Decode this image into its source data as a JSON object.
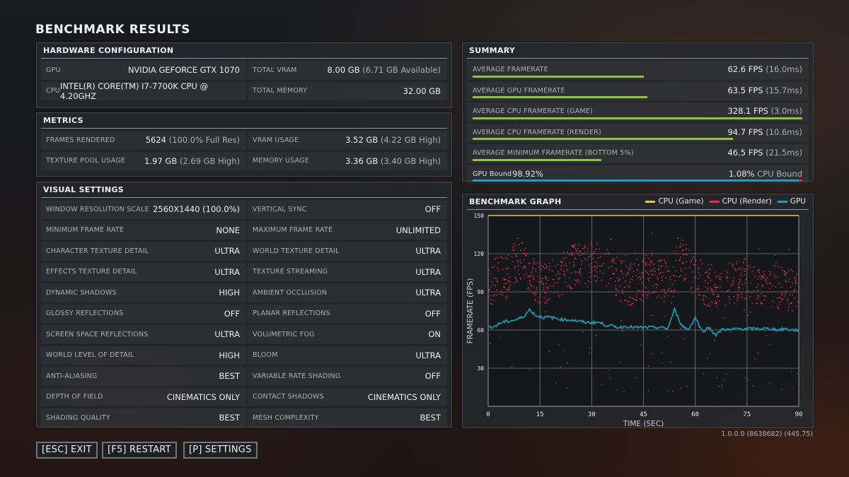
{
  "title": "BENCHMARK RESULTS",
  "hardware": {
    "header": "HARDWARE CONFIGURATION",
    "rows": [
      {
        "l_label": "GPU",
        "l_value": "NVIDIA GEFORCE GTX 1070",
        "r_label": "TOTAL VRAM",
        "r_value": "8.00 GB",
        "r_extra": "(6.71 GB Available)"
      },
      {
        "l_label": "CPU",
        "l_value": "INTEL(R) CORE(TM) I7-7700K CPU @ 4.20GHZ",
        "r_label": "TOTAL MEMORY",
        "r_value": "32.00 GB",
        "r_extra": ""
      }
    ]
  },
  "metrics": {
    "header": "METRICS",
    "rows": [
      {
        "l_label": "FRAMES RENDERED",
        "l_value": "5624",
        "l_extra": "(100.0% Full Res)",
        "r_label": "VRAM USAGE",
        "r_value": "3.52 GB",
        "r_extra": "(4.22 GB High)"
      },
      {
        "l_label": "TEXTURE POOL USAGE",
        "l_value": "1.97 GB",
        "l_extra": "(2.69 GB High)",
        "r_label": "MEMORY USAGE",
        "r_value": "3.36 GB",
        "r_extra": "(3.40 GB High)"
      }
    ]
  },
  "visual_settings": {
    "header": "VISUAL SETTINGS",
    "rows": [
      {
        "l_label": "WINDOW RESOLUTION SCALE",
        "l_value": "2560X1440 (100.0%)",
        "r_label": "VERTICAL SYNC",
        "r_value": "OFF"
      },
      {
        "l_label": "MINIMUM FRAME RATE",
        "l_value": "NONE",
        "r_label": "MAXIMUM FRAME RATE",
        "r_value": "UNLIMITED"
      },
      {
        "l_label": "CHARACTER TEXTURE DETAIL",
        "l_value": "ULTRA",
        "r_label": "WORLD TEXTURE DETAIL",
        "r_value": "ULTRA"
      },
      {
        "l_label": "EFFECTS TEXTURE DETAIL",
        "l_value": "ULTRA",
        "r_label": "TEXTURE STREAMING",
        "r_value": "ULTRA"
      },
      {
        "l_label": "DYNAMIC SHADOWS",
        "l_value": "HIGH",
        "r_label": "AMBIENT OCCLUSION",
        "r_value": "ULTRA"
      },
      {
        "l_label": "GLOSSY REFLECTIONS",
        "l_value": "OFF",
        "r_label": "PLANAR REFLECTIONS",
        "r_value": "OFF"
      },
      {
        "l_label": "SCREEN SPACE REFLECTIONS",
        "l_value": "ULTRA",
        "r_label": "VOLUMETRIC FOG",
        "r_value": "ON"
      },
      {
        "l_label": "WORLD LEVEL OF DETAIL",
        "l_value": "HIGH",
        "r_label": "BLOOM",
        "r_value": "ULTRA"
      },
      {
        "l_label": "ANTI-ALIASING",
        "l_value": "BEST",
        "r_label": "VARIABLE RATE SHADING",
        "r_value": "OFF"
      },
      {
        "l_label": "DEPTH OF FIELD",
        "l_value": "CINEMATICS ONLY",
        "r_label": "CONTACT SHADOWS",
        "r_value": "CINEMATICS ONLY"
      },
      {
        "l_label": "SHADING QUALITY",
        "l_value": "BEST",
        "r_label": "MESH COMPLEXITY",
        "r_value": "BEST"
      }
    ]
  },
  "summary": {
    "header": "SUMMARY",
    "rows": [
      {
        "label": "AVERAGE FRAMERATE",
        "value": "62.6 FPS",
        "extra": "(16.0ms)",
        "bar_fraction": 0.52
      },
      {
        "label": "AVERAGE GPU FRAMERATE",
        "value": "63.5 FPS",
        "extra": "(15.7ms)",
        "bar_fraction": 0.53
      },
      {
        "label": "AVERAGE CPU FRAMERATE (GAME)",
        "value": "328.1 FPS",
        "extra": "(3.0ms)",
        "bar_fraction": 1.0
      },
      {
        "label": "AVERAGE CPU FRAMERATE (RENDER)",
        "value": "94.7 FPS",
        "extra": "(10.6ms)",
        "bar_fraction": 0.79
      },
      {
        "label": "AVERAGE MINIMUM FRAMERATE (BOTTOM 5%)",
        "value": "46.5 FPS",
        "extra": "(21.5ms)",
        "bar_fraction": 0.39
      }
    ],
    "gpu_bound_label": "GPU Bound",
    "gpu_bound_value": "98.92%",
    "cpu_bound_value": "1.08%",
    "cpu_bound_label": "CPU Bound",
    "gpu_bound_fraction": 0.9892,
    "colors": {
      "bar": "#8cc63f",
      "gpu": "#1f9fbd",
      "cpu": "#e0303a"
    }
  },
  "graph": {
    "header": "BENCHMARK GRAPH",
    "legend": [
      {
        "name": "CPU (Game)",
        "color": "#e8c547"
      },
      {
        "name": "CPU (Render)",
        "color": "#e0303a"
      },
      {
        "name": "GPU",
        "color": "#1f9fbd"
      }
    ]
  },
  "chart_data": {
    "type": "scatter",
    "xlabel": "TIME (SEC)",
    "ylabel": "FRAMERATE (FPS)",
    "xlim": [
      0,
      90
    ],
    "ylim": [
      0,
      150
    ],
    "xticks": [
      "0",
      "15",
      "30",
      "45",
      "60",
      "75",
      "90"
    ],
    "yticks": [
      "30",
      "60",
      "90",
      "120",
      "150"
    ],
    "grid": true,
    "series": [
      {
        "name": "CPU (Game)",
        "color": "#e8c547",
        "x": [
          0,
          90
        ],
        "y": [
          150,
          150
        ]
      },
      {
        "name": "CPU (Render)",
        "color": "#e0303a",
        "x": [
          1,
          3,
          5,
          7,
          9,
          11,
          13,
          15,
          17,
          20,
          23,
          26,
          29,
          32,
          35,
          38,
          41,
          44,
          47,
          50,
          53,
          55,
          57,
          60,
          63,
          66,
          69,
          72,
          75,
          78,
          81,
          84,
          87,
          90
        ],
        "y": [
          95,
          105,
          100,
          110,
          118,
          110,
          100,
          98,
          96,
          102,
          108,
          112,
          110,
          116,
          106,
          100,
          96,
          98,
          104,
          100,
          96,
          118,
          112,
          100,
          96,
          94,
          96,
          98,
          100,
          94,
          96,
          94,
          92,
          92
        ]
      },
      {
        "name": "GPU",
        "color": "#1f9fbd",
        "x": [
          0,
          2,
          4,
          6,
          8,
          10,
          12,
          14,
          16,
          18,
          20,
          22,
          24,
          26,
          28,
          30,
          32,
          34,
          36,
          38,
          40,
          42,
          44,
          46,
          48,
          50,
          52,
          54,
          56,
          58,
          60,
          62,
          64,
          66,
          68,
          70,
          72,
          74,
          76,
          78,
          80,
          82,
          84,
          86,
          88,
          90
        ],
        "y": [
          62,
          63,
          66,
          67,
          68,
          70,
          76,
          71,
          70,
          70,
          69,
          68,
          68,
          67,
          66,
          66,
          66,
          64,
          63,
          62,
          63,
          62,
          62,
          62,
          62,
          62,
          61,
          76,
          64,
          60,
          70,
          59,
          62,
          56,
          61,
          60,
          61,
          61,
          61,
          61,
          61,
          61,
          60,
          61,
          60,
          60
        ]
      }
    ]
  },
  "buttons": {
    "exit": "[ESC] EXIT",
    "restart": "[F5] RESTART",
    "settings": "[P] SETTINGS"
  },
  "version": "1.0.0.0 (8638682) (445.75)"
}
